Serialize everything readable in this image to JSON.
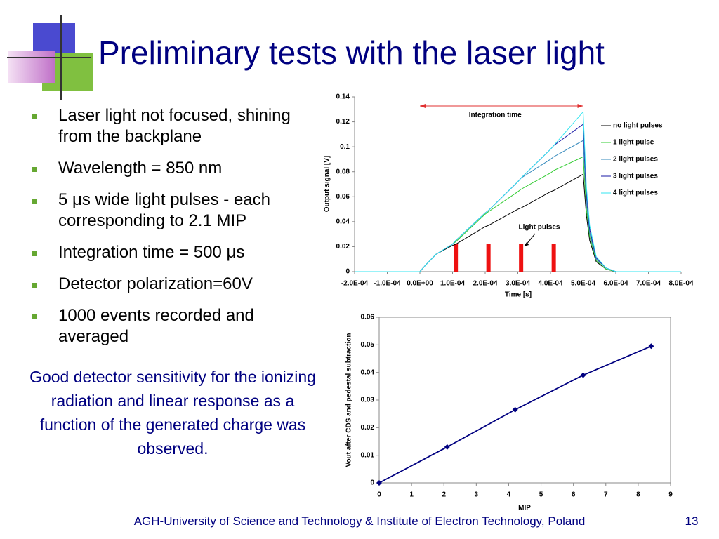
{
  "slide": {
    "title": "Preliminary tests with the laser light",
    "bullets": [
      "Laser light not focused, shining from the backplane",
      "Wavelength = 850 nm",
      "5 μs wide light pulses - each corresponding to 2.1 MIP",
      "Integration time = 500 μs",
      "Detector polarization=60V",
      "1000 events recorded and averaged"
    ],
    "conclusion": "Good detector sensitivity for the ionizing radiation and linear response as a function of the generated charge was observed.",
    "footer": "AGH-University of Science and Technology & Institute of Electron Technology, Poland",
    "page_number": "13"
  },
  "chart_data": [
    {
      "type": "line",
      "x_label": "Time  [s]",
      "y_label": "Output signal  [V]",
      "x": [
        -0.0002,
        0,
        2e-05,
        5e-05,
        0.0001,
        0.00011,
        0.0002,
        0.00021,
        0.0003,
        0.00031,
        0.0004,
        0.00041,
        0.0005,
        0.00051,
        0.00052,
        0.00054,
        0.00057,
        0.0006,
        0.0008
      ],
      "series": [
        {
          "name": "no light pulses",
          "color": "#000000",
          "values": [
            0,
            0,
            0.006,
            0.014,
            0.021,
            0.022,
            0.036,
            0.037,
            0.05,
            0.051,
            0.064,
            0.065,
            0.078,
            0.045,
            0.025,
            0.008,
            0.002,
            0,
            0
          ]
        },
        {
          "name": "1 light pulse",
          "color": "#33cc33",
          "values": [
            0,
            0,
            0.006,
            0.014,
            0.022,
            0.024,
            0.046,
            0.048,
            0.064,
            0.066,
            0.079,
            0.081,
            0.092,
            0.05,
            0.028,
            0.009,
            0.002,
            0,
            0
          ]
        },
        {
          "name": "2 light pulses",
          "color": "#3388bb",
          "values": [
            0,
            0,
            0.006,
            0.014,
            0.022,
            0.025,
            0.047,
            0.049,
            0.072,
            0.075,
            0.09,
            0.092,
            0.105,
            0.056,
            0.031,
            0.01,
            0.003,
            0,
            0
          ]
        },
        {
          "name": "3 light pulses",
          "color": "#1a1aa6",
          "values": [
            0,
            0,
            0.006,
            0.014,
            0.022,
            0.025,
            0.047,
            0.049,
            0.072,
            0.075,
            0.098,
            0.101,
            0.118,
            0.063,
            0.034,
            0.011,
            0.003,
            0,
            0
          ]
        },
        {
          "name": "4 light pulses",
          "color": "#33e6f0",
          "values": [
            0,
            0,
            0.006,
            0.014,
            0.022,
            0.025,
            0.047,
            0.049,
            0.072,
            0.075,
            0.098,
            0.101,
            0.128,
            0.068,
            0.037,
            0.012,
            0.003,
            0,
            0
          ]
        }
      ],
      "xlim": [
        -0.0002,
        0.0008
      ],
      "xticks": [
        {
          "value": -0.0002,
          "label": "-2.0E-04"
        },
        {
          "value": -0.0001,
          "label": "-1.0E-04"
        },
        {
          "value": 0,
          "label": "0.0E+00"
        },
        {
          "value": 0.0001,
          "label": "1.0E-04"
        },
        {
          "value": 0.0002,
          "label": "2.0E-04"
        },
        {
          "value": 0.0003,
          "label": "3.0E-04"
        },
        {
          "value": 0.0004,
          "label": "4.0E-04"
        },
        {
          "value": 0.0005,
          "label": "5.0E-04"
        },
        {
          "value": 0.0006,
          "label": "6.0E-04"
        },
        {
          "value": 0.0007,
          "label": "7.0E-04"
        },
        {
          "value": 0.0008,
          "label": "8.0E-04"
        }
      ],
      "ylim": [
        0,
        0.14
      ],
      "yticks": [
        0,
        0.02,
        0.04,
        0.06,
        0.08,
        0.1,
        0.12,
        0.14
      ],
      "integration_label": "Integration time",
      "integration_range": [
        0,
        0.0005
      ],
      "pulse_label": "Light pulses",
      "pulses": [
        0.00011,
        0.00021,
        0.00031,
        0.00041
      ],
      "pulse_height": 0.022,
      "pulse_color": "#ee1111"
    },
    {
      "type": "line",
      "markers": true,
      "x_label": "MIP",
      "y_label": "Vout after CDS and pedestal subtraction",
      "x": [
        0,
        2.1,
        4.2,
        6.3,
        8.4
      ],
      "series": [
        {
          "color": "#000080",
          "values": [
            0,
            0.013,
            0.0265,
            0.039,
            0.0495
          ]
        }
      ],
      "xlim": [
        0,
        9
      ],
      "xticks": [
        0,
        1,
        2,
        3,
        4,
        5,
        6,
        7,
        8,
        9
      ],
      "ylim": [
        0,
        0.06
      ],
      "yticks": [
        0,
        0.01,
        0.02,
        0.03,
        0.04,
        0.05,
        0.06
      ]
    }
  ]
}
